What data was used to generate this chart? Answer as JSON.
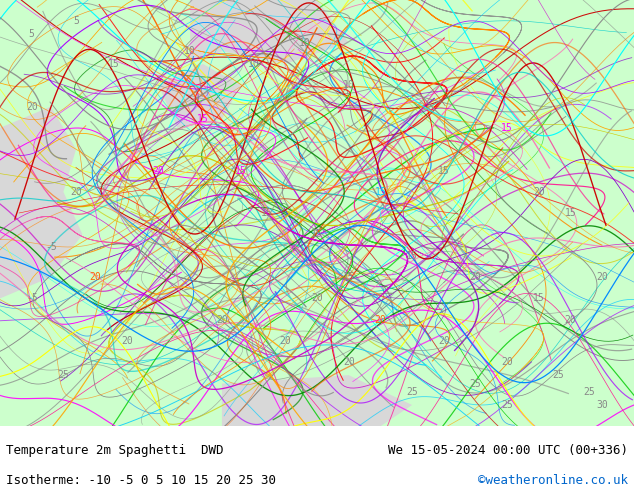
{
  "title_left": "Temperature 2m Spaghetti  DWD",
  "title_right": "We 15-05-2024 00:00 UTC (00+336)",
  "subtitle_left": "Isotherme: -10 -5 0 5 10 15 20 25 30",
  "subtitle_right": "©weatheronline.co.uk",
  "subtitle_right_color": "#0066cc",
  "bg_color": "#f0f0f0",
  "map_bg_light": "#ccffcc",
  "map_bg_dark": "#e8e8e8",
  "bottom_bar_color": "#ffffff",
  "text_color": "#000000",
  "title_fontsize": 9,
  "subtitle_fontsize": 9,
  "fig_width": 6.34,
  "fig_height": 4.9,
  "dpi": 100
}
